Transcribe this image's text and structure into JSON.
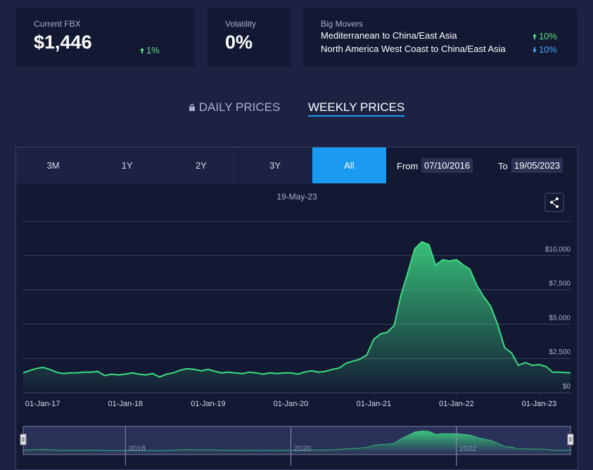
{
  "summary": [
    {
      "label": "Current FBX",
      "value": "$1,446",
      "change": "1%",
      "direction": "up"
    },
    {
      "label": "Volatility",
      "value": "0%"
    }
  ],
  "big_movers": {
    "title": "Big Movers",
    "rows": [
      {
        "route": "Mediterranean to China/East Asia",
        "change": "10%",
        "direction": "up"
      },
      {
        "route": "North America West Coast to China/East Asia",
        "change": "10%",
        "direction": "down"
      }
    ]
  },
  "tabs": [
    "DAILY PRICES",
    "WEEKLY PRICES"
  ],
  "active_tab": 1,
  "ranges": [
    "3M",
    "1Y",
    "2Y",
    "3Y",
    "All"
  ],
  "active_range": 4,
  "from_label": "From",
  "from": "07/10/2016",
  "to_label": "To",
  "to": "19/05/2023",
  "chart_data": {
    "type": "area",
    "title": "19-May-23",
    "color": "#3ddc84",
    "x": [
      "2016-10-07",
      "2016-11-01",
      "2016-12-01",
      "2017-01-01",
      "2017-02-01",
      "2017-03-01",
      "2017-04-01",
      "2017-05-01",
      "2017-06-01",
      "2017-07-01",
      "2017-08-01",
      "2017-09-01",
      "2017-10-01",
      "2017-11-01",
      "2017-12-01",
      "2018-01-01",
      "2018-02-01",
      "2018-03-01",
      "2018-04-01",
      "2018-05-01",
      "2018-06-01",
      "2018-07-01",
      "2018-08-01",
      "2018-09-01",
      "2018-10-01",
      "2018-11-01",
      "2018-12-01",
      "2019-01-01",
      "2019-02-01",
      "2019-03-01",
      "2019-04-01",
      "2019-05-01",
      "2019-06-01",
      "2019-07-01",
      "2019-08-01",
      "2019-09-01",
      "2019-10-01",
      "2019-11-01",
      "2019-12-01",
      "2020-01-01",
      "2020-02-01",
      "2020-03-01",
      "2020-04-01",
      "2020-05-01",
      "2020-06-01",
      "2020-07-01",
      "2020-08-01",
      "2020-09-01",
      "2020-10-01",
      "2020-11-01",
      "2020-12-01",
      "2021-01-01",
      "2021-02-01",
      "2021-03-01",
      "2021-04-01",
      "2021-05-01",
      "2021-06-01",
      "2021-07-01",
      "2021-08-01",
      "2021-09-01",
      "2021-10-01",
      "2021-11-01",
      "2021-12-01",
      "2022-01-01",
      "2022-02-01",
      "2022-03-01",
      "2022-04-01",
      "2022-05-01",
      "2022-06-01",
      "2022-07-01",
      "2022-08-01",
      "2022-09-01",
      "2022-10-01",
      "2022-11-01",
      "2022-12-01",
      "2023-01-01",
      "2023-02-01",
      "2023-03-01",
      "2023-04-01",
      "2023-05-19"
    ],
    "values": [
      1450,
      1600,
      1750,
      1850,
      1700,
      1500,
      1400,
      1450,
      1450,
      1500,
      1500,
      1550,
      1250,
      1350,
      1300,
      1350,
      1450,
      1350,
      1300,
      1400,
      1150,
      1350,
      1450,
      1650,
      1750,
      1700,
      1600,
      1700,
      1550,
      1450,
      1500,
      1450,
      1400,
      1500,
      1450,
      1350,
      1450,
      1400,
      1450,
      1450,
      1350,
      1500,
      1600,
      1500,
      1550,
      1700,
      1800,
      2150,
      2300,
      2450,
      2750,
      3900,
      4300,
      4400,
      4900,
      7100,
      8800,
      10500,
      11000,
      10800,
      9300,
      9700,
      9600,
      9700,
      9300,
      9000,
      7800,
      7000,
      6300,
      5000,
      3300,
      2900,
      2000,
      2200,
      2000,
      2050,
      1900,
      1500,
      1500,
      1446
    ],
    "xlim": [
      "2016-10-07",
      "2023-05-19"
    ],
    "xticks": [
      {
        "value": "2017-01-01",
        "label": "01-Jan-17"
      },
      {
        "value": "2018-01-01",
        "label": "01-Jan-18"
      },
      {
        "value": "2019-01-01",
        "label": "01-Jan-19"
      },
      {
        "value": "2020-01-01",
        "label": "01-Jan-20"
      },
      {
        "value": "2021-01-01",
        "label": "01-Jan-21"
      },
      {
        "value": "2022-01-01",
        "label": "01-Jan-22"
      },
      {
        "value": "2023-01-01",
        "label": "01-Jan-23"
      }
    ],
    "ylim": [
      0,
      12500
    ],
    "yticks": [
      {
        "value": 0,
        "label": "$0"
      },
      {
        "value": 2500,
        "label": "$2,500"
      },
      {
        "value": 5000,
        "label": "$5,000"
      },
      {
        "value": 7500,
        "label": "$7,500"
      },
      {
        "value": 10000,
        "label": "$10,000"
      }
    ],
    "grid": true,
    "navigator_ticks": [
      {
        "value": "2018-01-01",
        "label": "2018"
      },
      {
        "value": "2020-01-01",
        "label": "2020"
      },
      {
        "value": "2022-01-01",
        "label": "2022"
      }
    ]
  }
}
